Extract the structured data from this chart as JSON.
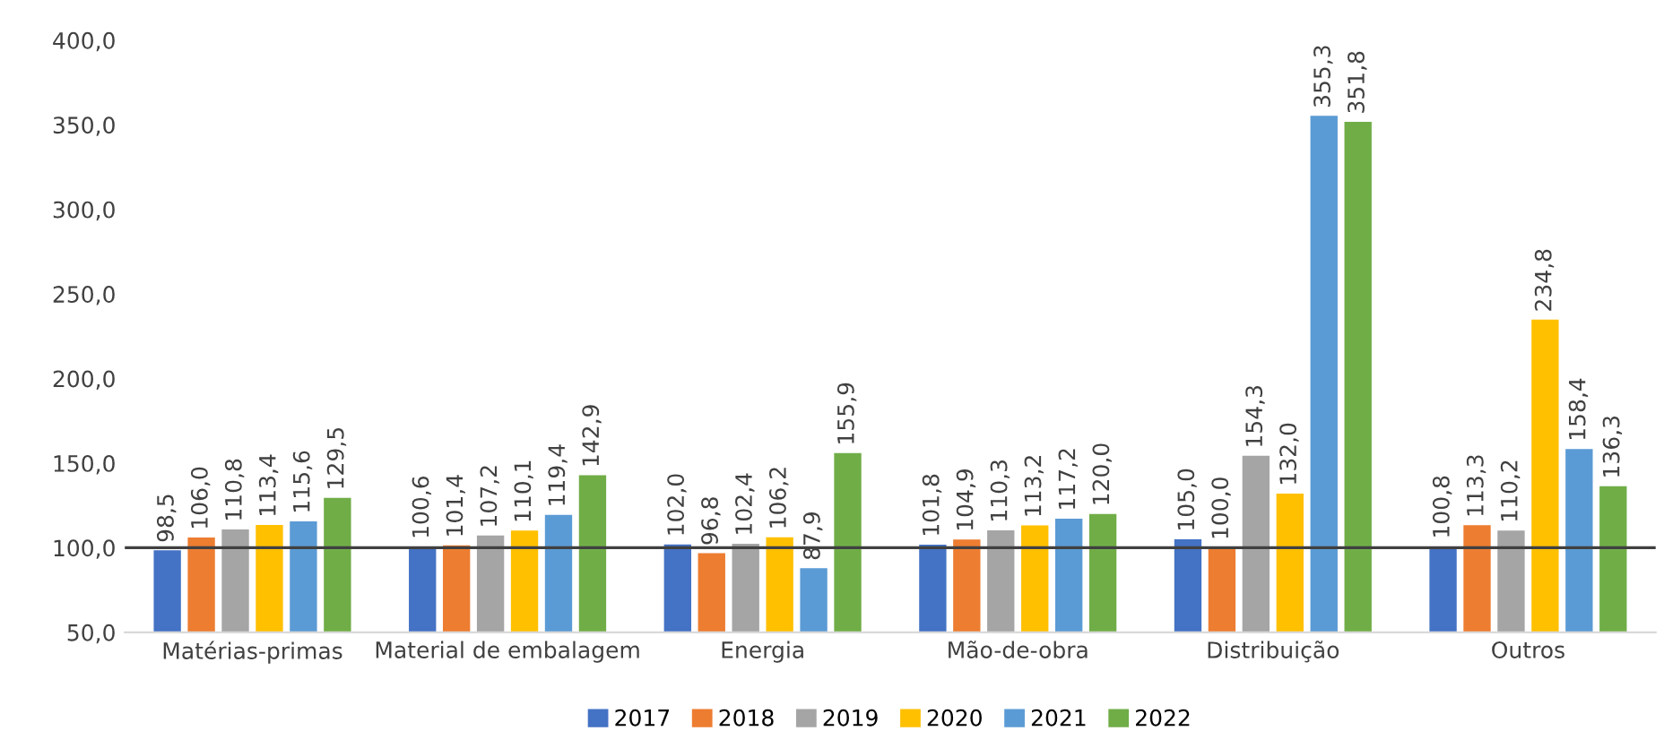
{
  "chart_data": {
    "type": "bar",
    "categories": [
      "Matérias-primas",
      "Material de embalagem",
      "Energia",
      "Mão-de-obra",
      "Distribuição",
      "Outros"
    ],
    "series": [
      {
        "name": "2017",
        "color": "#4472c4",
        "values": [
          98.5,
          100.6,
          102.0,
          101.8,
          105.0,
          100.8
        ],
        "value_labels": [
          "98,5",
          "100,6",
          "102,0",
          "101,8",
          "105,0",
          "100,8"
        ]
      },
      {
        "name": "2018",
        "color": "#ed7d31",
        "values": [
          106.0,
          101.4,
          96.8,
          104.9,
          100.0,
          113.3
        ],
        "value_labels": [
          "106,0",
          "101,4",
          "96,8",
          "104,9",
          "100,0",
          "113,3"
        ]
      },
      {
        "name": "2019",
        "color": "#a5a5a5",
        "values": [
          110.8,
          107.2,
          102.4,
          110.3,
          154.3,
          110.2
        ],
        "value_labels": [
          "110,8",
          "107,2",
          "102,4",
          "110,3",
          "154,3",
          "110,2"
        ]
      },
      {
        "name": "2020",
        "color": "#ffc000",
        "values": [
          113.4,
          110.1,
          106.2,
          113.2,
          132.0,
          234.8
        ],
        "value_labels": [
          "113,4",
          "110,1",
          "106,2",
          "113,2",
          "132,0",
          "234,8"
        ]
      },
      {
        "name": "2021",
        "color": "#5b9bd5",
        "values": [
          115.6,
          119.4,
          87.9,
          117.2,
          355.3,
          158.4
        ],
        "value_labels": [
          "115,6",
          "119,4",
          "87,9",
          "117,2",
          "355,3",
          "158,4"
        ]
      },
      {
        "name": "2022",
        "color": "#70ad47",
        "values": [
          129.5,
          142.9,
          155.9,
          120.0,
          351.8,
          136.3
        ],
        "value_labels": [
          "129,5",
          "142,9",
          "155,9",
          "120,0",
          "351,8",
          "136,3"
        ]
      }
    ],
    "ylim": [
      50,
      400
    ],
    "yticks": [
      {
        "value": 50,
        "label": "50,0"
      },
      {
        "value": 100,
        "label": "100,0"
      },
      {
        "value": 150,
        "label": "150,0"
      },
      {
        "value": 200,
        "label": "200,0"
      },
      {
        "value": 250,
        "label": "250,0"
      },
      {
        "value": 300,
        "label": "300,0"
      },
      {
        "value": 350,
        "label": "350,0"
      },
      {
        "value": 400,
        "label": "400,0"
      }
    ],
    "ref_lines": [
      {
        "axis": "y",
        "value": 100,
        "color": "#404040"
      }
    ],
    "grid": false,
    "legend": "bottom"
  }
}
